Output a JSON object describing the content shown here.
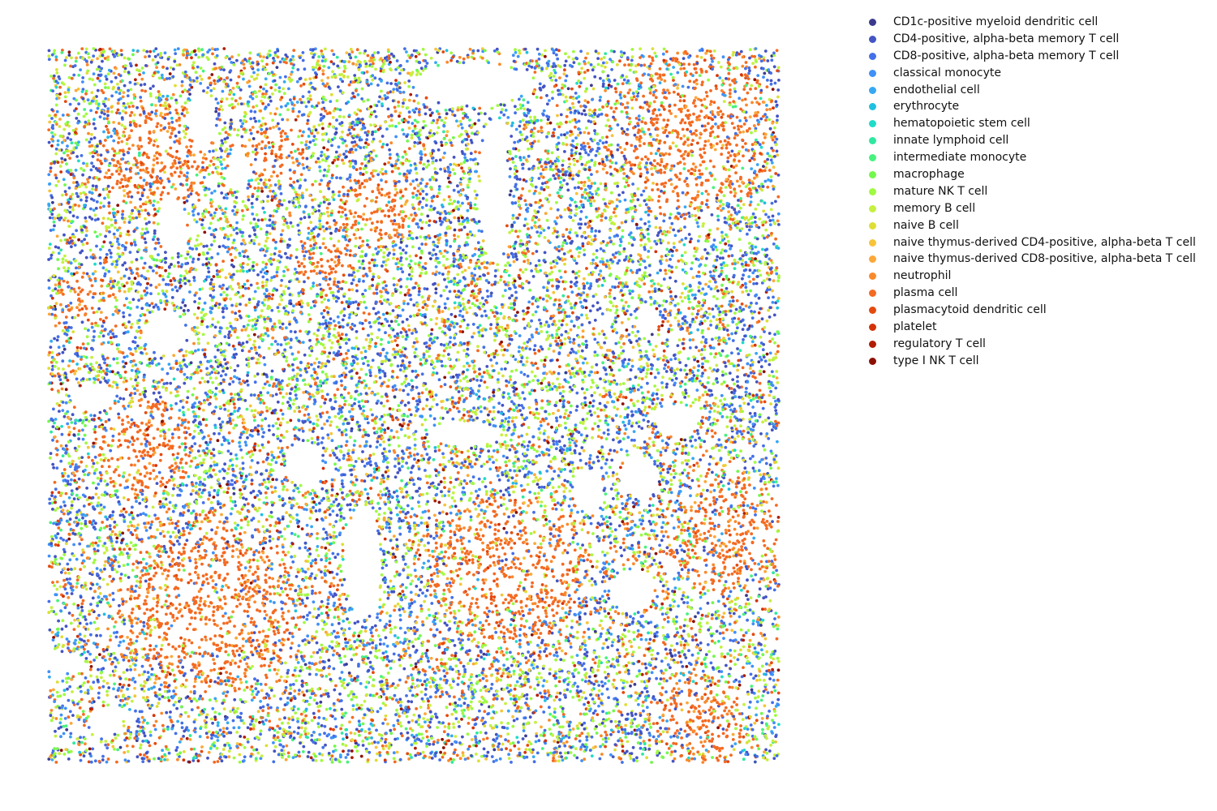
{
  "chart_data": {
    "type": "scatter",
    "title": "",
    "xlabel": "",
    "ylabel": "",
    "axes_visible": false,
    "grid": false,
    "legend_placement": "outside-right",
    "xlim": [
      0,
      100
    ],
    "ylim": [
      0,
      100
    ],
    "point_count_note": "",
    "series": [
      {
        "name": "CD1c-positive myeloid dendritic cell",
        "color": "#3b3a8f",
        "weight": 1
      },
      {
        "name": "CD4-positive, alpha-beta memory T cell",
        "color": "#4454c4",
        "weight": 14
      },
      {
        "name": "CD8-positive, alpha-beta memory T cell",
        "color": "#4470e8",
        "weight": 14
      },
      {
        "name": "classical monocyte",
        "color": "#4090f8",
        "weight": 8
      },
      {
        "name": "endothelial cell",
        "color": "#37a8f2",
        "weight": 4
      },
      {
        "name": "erythrocyte",
        "color": "#1fc0e0",
        "weight": 1
      },
      {
        "name": "hematopoietic stem cell",
        "color": "#1fdcc8",
        "weight": 1
      },
      {
        "name": "innate lymphoid cell",
        "color": "#2ee8a0",
        "weight": 1
      },
      {
        "name": "intermediate monocyte",
        "color": "#48f27e",
        "weight": 2
      },
      {
        "name": "macrophage",
        "color": "#72f84c",
        "weight": 3
      },
      {
        "name": "mature NK T cell",
        "color": "#a0fa40",
        "weight": 10
      },
      {
        "name": "memory B cell",
        "color": "#c6f040",
        "weight": 9
      },
      {
        "name": "naive B cell",
        "color": "#dede36",
        "weight": 4
      },
      {
        "name": "naive thymus-derived CD4-positive, alpha-beta T cell",
        "color": "#f6c43a",
        "weight": 3
      },
      {
        "name": "naive thymus-derived CD8-positive, alpha-beta T cell",
        "color": "#fca838",
        "weight": 3
      },
      {
        "name": "neutrophil",
        "color": "#f98a2c",
        "weight": 4
      },
      {
        "name": "plasma cell",
        "color": "#f46a22",
        "weight": 9
      },
      {
        "name": "plasmacytoid dendritic cell",
        "color": "#e44a0e",
        "weight": 2
      },
      {
        "name": "platelet",
        "color": "#d43208",
        "weight": 1
      },
      {
        "name": "regulatory T cell",
        "color": "#b01e04",
        "weight": 1
      },
      {
        "name": "type I NK T cell",
        "color": "#8c1002",
        "weight": 1
      }
    ],
    "regions": {
      "plasma_clusters": [
        {
          "x": 15,
          "y": 85,
          "r": 8
        },
        {
          "x": 31,
          "y": 85,
          "r": 5
        },
        {
          "x": 45,
          "y": 78,
          "r": 6
        },
        {
          "x": 88,
          "y": 88,
          "r": 12
        },
        {
          "x": 13,
          "y": 44,
          "r": 7
        },
        {
          "x": 22,
          "y": 22,
          "r": 13
        },
        {
          "x": 63,
          "y": 27,
          "r": 11
        },
        {
          "x": 93,
          "y": 32,
          "r": 9
        },
        {
          "x": 89,
          "y": 6,
          "r": 7
        },
        {
          "x": 5,
          "y": 65,
          "r": 4
        },
        {
          "x": 38,
          "y": 70,
          "r": 4
        }
      ],
      "voids": [
        {
          "x": 58,
          "y": 95,
          "rx": 8,
          "ry": 3
        },
        {
          "x": 61,
          "y": 80,
          "rx": 2,
          "ry": 10
        },
        {
          "x": 43,
          "y": 28,
          "rx": 2.5,
          "ry": 8
        },
        {
          "x": 57,
          "y": 46,
          "rx": 5,
          "ry": 1.8
        },
        {
          "x": 35,
          "y": 42,
          "rx": 2.5,
          "ry": 3
        },
        {
          "x": 16,
          "y": 60,
          "rx": 3,
          "ry": 3
        },
        {
          "x": 21,
          "y": 90,
          "rx": 2,
          "ry": 4
        },
        {
          "x": 17,
          "y": 75,
          "rx": 2,
          "ry": 4
        },
        {
          "x": 26,
          "y": 83,
          "rx": 1.5,
          "ry": 3
        },
        {
          "x": 6,
          "y": 51,
          "rx": 3,
          "ry": 2
        },
        {
          "x": 86,
          "y": 48,
          "rx": 3,
          "ry": 2
        },
        {
          "x": 81,
          "y": 40,
          "rx": 2.5,
          "ry": 3
        },
        {
          "x": 74,
          "y": 38,
          "rx": 2,
          "ry": 3
        },
        {
          "x": 80,
          "y": 24,
          "rx": 3,
          "ry": 3
        },
        {
          "x": 82,
          "y": 62,
          "rx": 1.5,
          "ry": 2
        },
        {
          "x": 2,
          "y": 14,
          "rx": 3,
          "ry": 1.5
        },
        {
          "x": 8,
          "y": 6,
          "rx": 2,
          "ry": 2
        }
      ]
    }
  },
  "legend": {
    "items": [
      {
        "label": "CD1c-positive myeloid dendritic cell",
        "color": "#3b3a8f"
      },
      {
        "label": "CD4-positive, alpha-beta memory T cell",
        "color": "#4454c4"
      },
      {
        "label": "CD8-positive, alpha-beta memory T cell",
        "color": "#4470e8"
      },
      {
        "label": "classical monocyte",
        "color": "#4090f8"
      },
      {
        "label": "endothelial cell",
        "color": "#37a8f2"
      },
      {
        "label": "erythrocyte",
        "color": "#1fc0e0"
      },
      {
        "label": "hematopoietic stem cell",
        "color": "#1fdcc8"
      },
      {
        "label": "innate lymphoid cell",
        "color": "#2ee8a0"
      },
      {
        "label": "intermediate monocyte",
        "color": "#48f27e"
      },
      {
        "label": "macrophage",
        "color": "#72f84c"
      },
      {
        "label": "mature NK T cell",
        "color": "#a0fa40"
      },
      {
        "label": "memory B cell",
        "color": "#c6f040"
      },
      {
        "label": "naive B cell",
        "color": "#dede36"
      },
      {
        "label": "naive thymus-derived CD4-positive, alpha-beta T cell",
        "color": "#f6c43a"
      },
      {
        "label": "naive thymus-derived CD8-positive, alpha-beta T cell",
        "color": "#fca838"
      },
      {
        "label": "neutrophil",
        "color": "#f98a2c"
      },
      {
        "label": "plasma cell",
        "color": "#f46a22"
      },
      {
        "label": "plasmacytoid dendritic cell",
        "color": "#e44a0e"
      },
      {
        "label": "platelet",
        "color": "#d43208"
      },
      {
        "label": "regulatory T cell",
        "color": "#b01e04"
      },
      {
        "label": "type I NK T cell",
        "color": "#8c1002"
      }
    ]
  }
}
